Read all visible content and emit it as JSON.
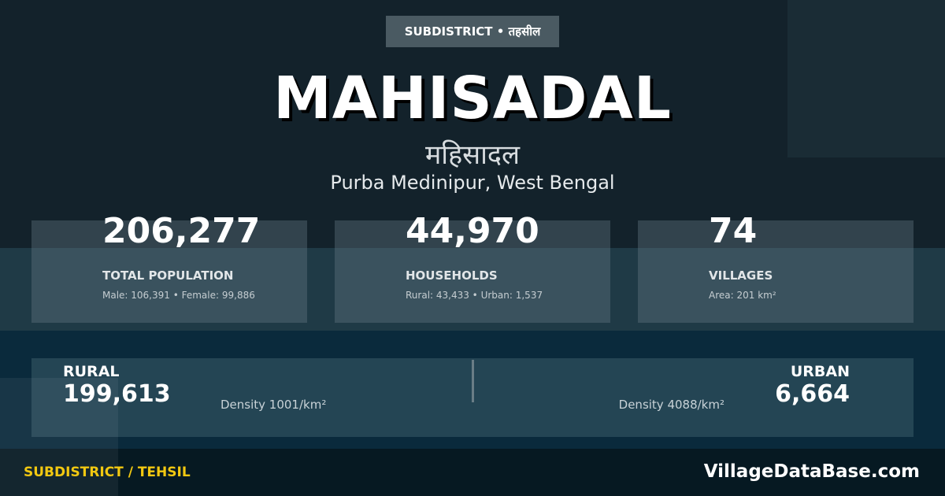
{
  "badge": "SUBDISTRICT • तहसील",
  "title": "MAHISADAL",
  "title_hindi": "महिसादल",
  "location": "Purba Medinipur, West Bengal",
  "stats": [
    {
      "value": "206,277",
      "label": "TOTAL POPULATION",
      "sub": "Male: 106,391 • Female: 99,886"
    },
    {
      "value": "44,970",
      "label": "HOUSEHOLDS",
      "sub": "Rural: 43,433 • Urban: 1,537"
    },
    {
      "value": "74",
      "label": "VILLAGES",
      "sub": "Area: 201 km²"
    }
  ],
  "rural": {
    "label": "RURAL",
    "value": "199,613",
    "density": "Density 1001/km²"
  },
  "urban": {
    "label": "URBAN",
    "value": "6,664",
    "density": "Density 4088/km²"
  },
  "footer": {
    "left": "SUBDISTRICT / TEHSIL",
    "right": "VillageDataBase.com"
  },
  "colors": {
    "accent": "#f2c811",
    "background": "#13222b"
  }
}
